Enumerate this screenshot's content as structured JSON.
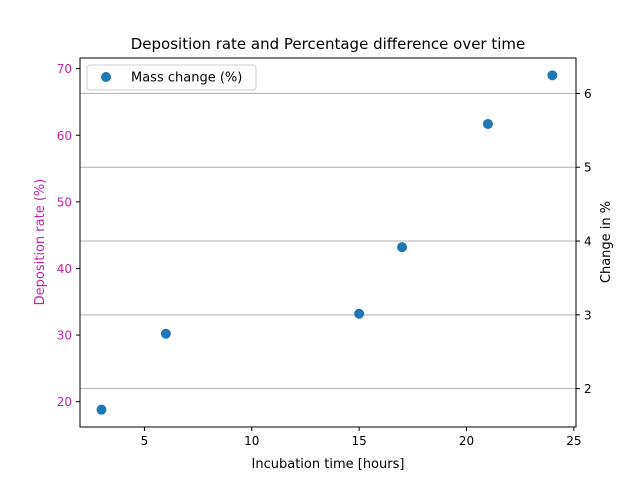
{
  "chart_data": {
    "type": "scatter",
    "title": "Deposition rate and Percentage difference over time",
    "xlabel": "Incubation time [hours]",
    "ylabel_left": "Deposition rate (%)",
    "ylabel_right": "Change in %",
    "xlim": [
      2.0,
      25.1
    ],
    "ylim_left": [
      16.2,
      71.6
    ],
    "ylim_right": [
      1.48,
      6.48
    ],
    "x_ticks": [
      5,
      10,
      15,
      20,
      25
    ],
    "x_tick_labels": [
      "5",
      "10",
      "15",
      "20",
      "25"
    ],
    "y_left_ticks": [
      20,
      30,
      40,
      50,
      60,
      70
    ],
    "y_left_tick_labels": [
      "20",
      "30",
      "40",
      "50",
      "60",
      "70"
    ],
    "y_right_ticks": [
      2,
      3,
      4,
      5,
      6
    ],
    "y_right_tick_labels": [
      "2",
      "3",
      "4",
      "5",
      "6"
    ],
    "grid": "horizontal-right-axis",
    "legend_position": "top-left",
    "series": [
      {
        "name": "Mass change (%)",
        "axis": "left",
        "x": [
          3,
          6,
          15,
          17,
          21,
          24
        ],
        "y": [
          18.8,
          30.2,
          33.2,
          43.2,
          61.7,
          69.0
        ]
      }
    ],
    "colors": {
      "series": "#1f77b4",
      "left_axis": "#c026a8",
      "grid": "#b0b0b0",
      "axis": "#000000"
    }
  }
}
